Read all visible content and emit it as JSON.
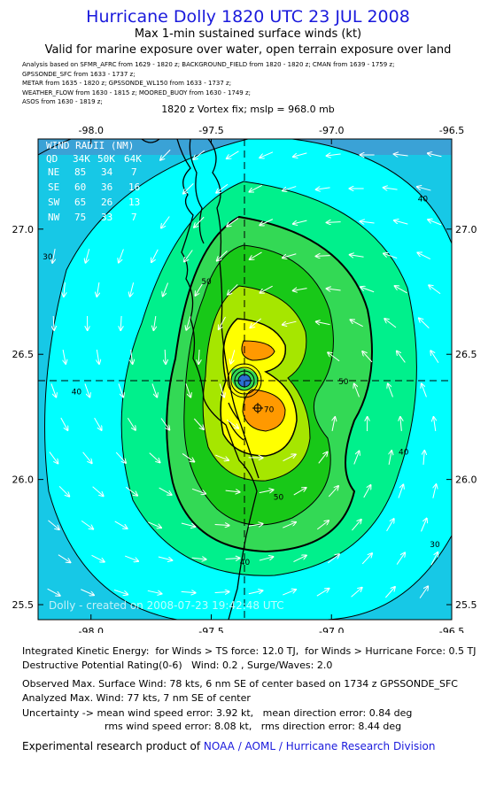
{
  "header": {
    "title": "Hurricane Dolly 1820 UTC 23 JUL 2008",
    "subtitle1": "Max 1-min sustained surface winds (kt)",
    "subtitle2": "Valid for marine exposure over water, open terrain exposure over land",
    "analysis_lines": [
      "Analysis based on  SFMR_AFRC from 1629 - 1820 z;  BACKGROUND_FIELD from 1820 - 1820 z;  CMAN from 1639 - 1759 z;",
      "GPSSONDE_SFC from 1633 - 1737 z;",
      "METAR from 1635 - 1820 z;  GPSSONDE_WL150 from 1633 - 1737 z;",
      "WEATHER_FLOW from 1630 - 1815 z;  MOORED_BUOY from 1630 - 1749 z;",
      "ASOS from 1630 - 1819 z;"
    ],
    "vortex_fix": "1820 z Vortex fix; mslp = 968.0 mb"
  },
  "chart_data": {
    "type": "contour-map",
    "x_ticks": [
      "-98.0",
      "-97.5",
      "-97.0",
      "-96.5"
    ],
    "y_ticks": [
      "27.0",
      "26.5",
      "26.0",
      "25.5"
    ],
    "xlim": [
      -98.22,
      -96.5
    ],
    "ylim": [
      25.44,
      27.36
    ],
    "center": {
      "lon": -97.21,
      "lat": 26.35
    },
    "max_wind_marker": {
      "lon": -97.16,
      "lat": 26.24
    },
    "contour_labels": [
      {
        "text": "30",
        "lon": -98.18,
        "lat": 26.88
      },
      {
        "text": "40",
        "lon": -98.06,
        "lat": 26.34
      },
      {
        "text": "50",
        "lon": -97.52,
        "lat": 26.78
      },
      {
        "text": "40",
        "lon": -96.62,
        "lat": 27.11
      },
      {
        "text": "50",
        "lon": -96.95,
        "lat": 26.38
      },
      {
        "text": "40",
        "lon": -96.7,
        "lat": 26.1
      },
      {
        "text": "50",
        "lon": -97.22,
        "lat": 25.92
      },
      {
        "text": "40",
        "lon": -97.36,
        "lat": 25.66
      },
      {
        "text": "30",
        "lon": -96.57,
        "lat": 25.73
      },
      {
        "text": "70",
        "lon": -97.26,
        "lat": 26.27
      }
    ],
    "wind_radii": {
      "title": "WIND RADII (NM)",
      "header": [
        "QD",
        "34K",
        "50K",
        "64K"
      ],
      "rows": [
        [
          "NE",
          "85",
          "34",
          "7"
        ],
        [
          "SE",
          "60",
          "36",
          "16"
        ],
        [
          "SW",
          "65",
          "26",
          "13"
        ],
        [
          "NW",
          "75",
          "33",
          "7"
        ]
      ]
    },
    "watermark": "Dolly - created on 2008-07-23 19:42:48 UTC"
  },
  "info": {
    "ike": "Integrated Kinetic Energy:  for Winds > TS force: 12.0 TJ,  for Winds > Hurricane Force: 0.5 TJ",
    "dpr": "Destructive Potential Rating(0-6)   Wind: 0.2 , Surge/Waves: 2.0",
    "observed": "Observed Max. Surface Wind: 78 kts, 6 nm SE of center based on 1734 z GPSSONDE_SFC",
    "analyzed": "Analyzed Max. Wind: 77 kts, 7 nm SE of center",
    "uncertainty1": "Uncertainty -> mean wind speed error: 3.92 kt,   mean direction error: 0.84 deg",
    "uncertainty2": "rms wind speed error: 8.08 kt,   rms direction error: 8.44 deg"
  },
  "footer": {
    "prefix": "Experimental research product of ",
    "link": "NOAA / AOML / Hurricane Research Division"
  },
  "colors": {
    "cyan": "#00ffff",
    "aqua_blue": "#17c8e6",
    "blue_edge": "#3aa2d6",
    "light_green": "#00f08c",
    "green": "#33d955",
    "bright_green": "#18c818",
    "yellow_green": "#a6e600",
    "yellow": "#ffff00",
    "orange": "#ff9900",
    "title_blue": "#1a1adc"
  }
}
